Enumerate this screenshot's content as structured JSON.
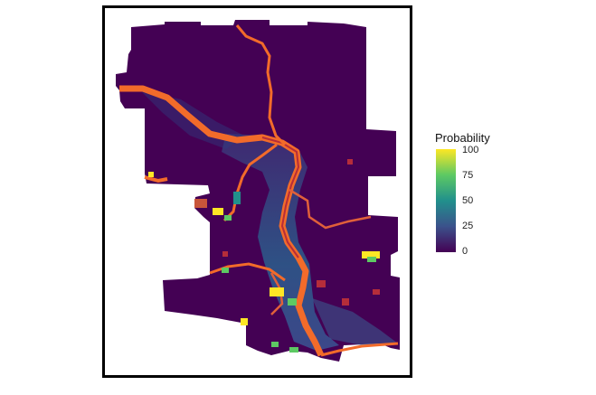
{
  "legend": {
    "title": "Probability",
    "ticks": [
      "100",
      "75",
      "50",
      "25",
      "0"
    ]
  },
  "colors": {
    "low": "#440154",
    "mid": "#21908c",
    "high": "#fde725",
    "river": "#f26b2a",
    "river_dark": "#b52d3a"
  },
  "icons": [
    "color-scale"
  ]
}
